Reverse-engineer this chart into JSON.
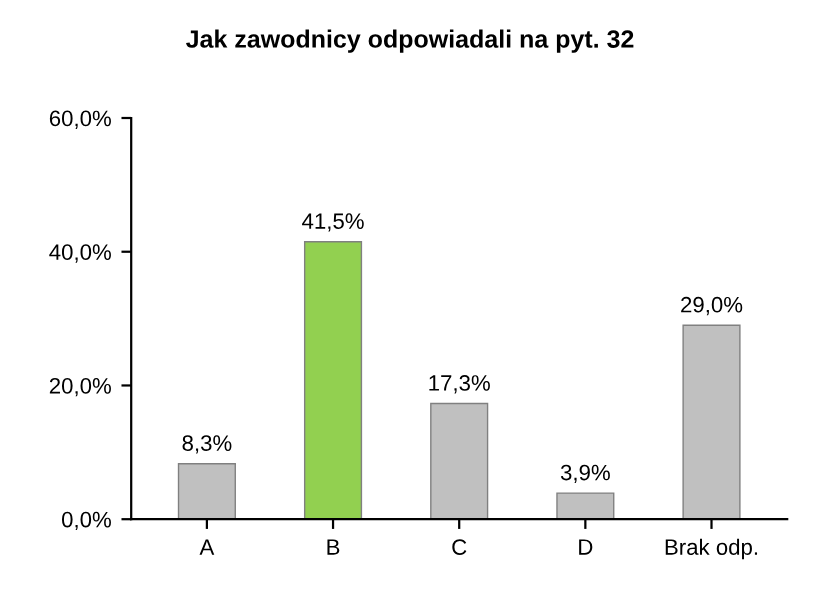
{
  "chart_data": {
    "type": "bar",
    "title": "Jak zawodnicy odpowiadali na pyt. 32",
    "categories": [
      "A",
      "B",
      "C",
      "D",
      "Brak odp."
    ],
    "values": [
      8.3,
      41.5,
      17.3,
      3.9,
      29.0
    ],
    "colors": [
      "#c0c0c0",
      "#92d050",
      "#c0c0c0",
      "#c0c0c0",
      "#c0c0c0"
    ],
    "value_labels": [
      "8,3%",
      "41,5%",
      "17,3%",
      "3,9%",
      "29,0%"
    ],
    "ylim": [
      0,
      60
    ],
    "yticks": [
      {
        "value": 0,
        "label": "0,0%"
      },
      {
        "value": 20,
        "label": "20,0%"
      },
      {
        "value": 40,
        "label": "40,0%"
      },
      {
        "value": 60,
        "label": "60,0%"
      }
    ],
    "grid": false
  }
}
